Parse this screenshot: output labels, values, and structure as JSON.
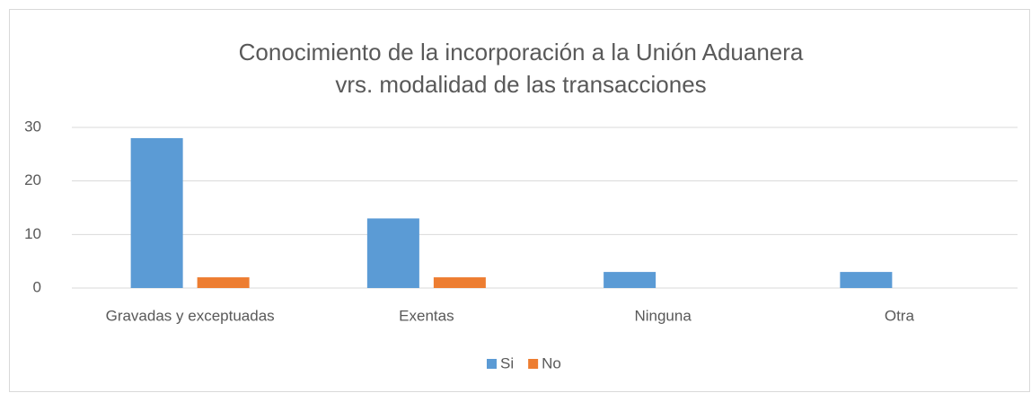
{
  "chart_data": {
    "type": "bar",
    "title": "Conocimiento de la incorporación a la Unión Aduanera vrs. modalidad de las transacciones",
    "categories": [
      "Gravadas y exceptuadas",
      "Exentas",
      "Ninguna",
      "Otra"
    ],
    "series": [
      {
        "name": "Si",
        "color": "#5b9bd5",
        "values": [
          28,
          13,
          3,
          3
        ]
      },
      {
        "name": "No",
        "color": "#ed7d31",
        "values": [
          2,
          2,
          0,
          0
        ]
      }
    ],
    "ylim": [
      0,
      30
    ],
    "yticks": [
      0,
      10,
      20,
      30
    ],
    "grid": true,
    "legend": "bottom"
  }
}
